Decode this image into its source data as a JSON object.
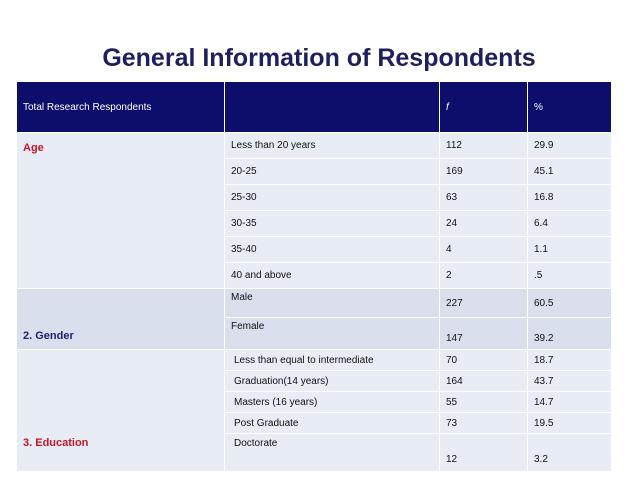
{
  "title": "General Information of Respondents",
  "header": {
    "col1": "Total Research Respondents",
    "col2": "",
    "col3": "f",
    "col4": "%"
  },
  "sections": [
    {
      "label": "Age",
      "rows": [
        {
          "label": "Less than 20 years",
          "f": "112",
          "pct": "29.9"
        },
        {
          "label": "20-25",
          "f": "169",
          "pct": "45.1"
        },
        {
          "label": "25-30",
          "f": "63",
          "pct": "16.8"
        },
        {
          "label": "30-35",
          "f": "24",
          "pct": "6.4"
        },
        {
          "label": "35-40",
          "f": "4",
          "pct": "1.1"
        },
        {
          "label": "40 and above",
          "f": "2",
          "pct": ".5"
        }
      ]
    },
    {
      "label": "2. Gender",
      "rows": [
        {
          "label": "Male",
          "f": "227",
          "pct": "60.5"
        },
        {
          "label": "Female",
          "f": "147",
          "pct": "39.2"
        }
      ]
    },
    {
      "label": "3.  Education",
      "rows": [
        {
          "label": "Less than equal to intermediate",
          "f": "70",
          "pct": "18.7"
        },
        {
          "label": "Graduation(14 years)",
          "f": "164",
          "pct": "43.7"
        },
        {
          "label": "Masters (16 years)",
          "f": "55",
          "pct": "14.7"
        },
        {
          "label": "Post Graduate",
          "f": "73",
          "pct": "19.5"
        },
        {
          "label": "Doctorate",
          "f": "12",
          "pct": "3.2"
        }
      ]
    }
  ]
}
